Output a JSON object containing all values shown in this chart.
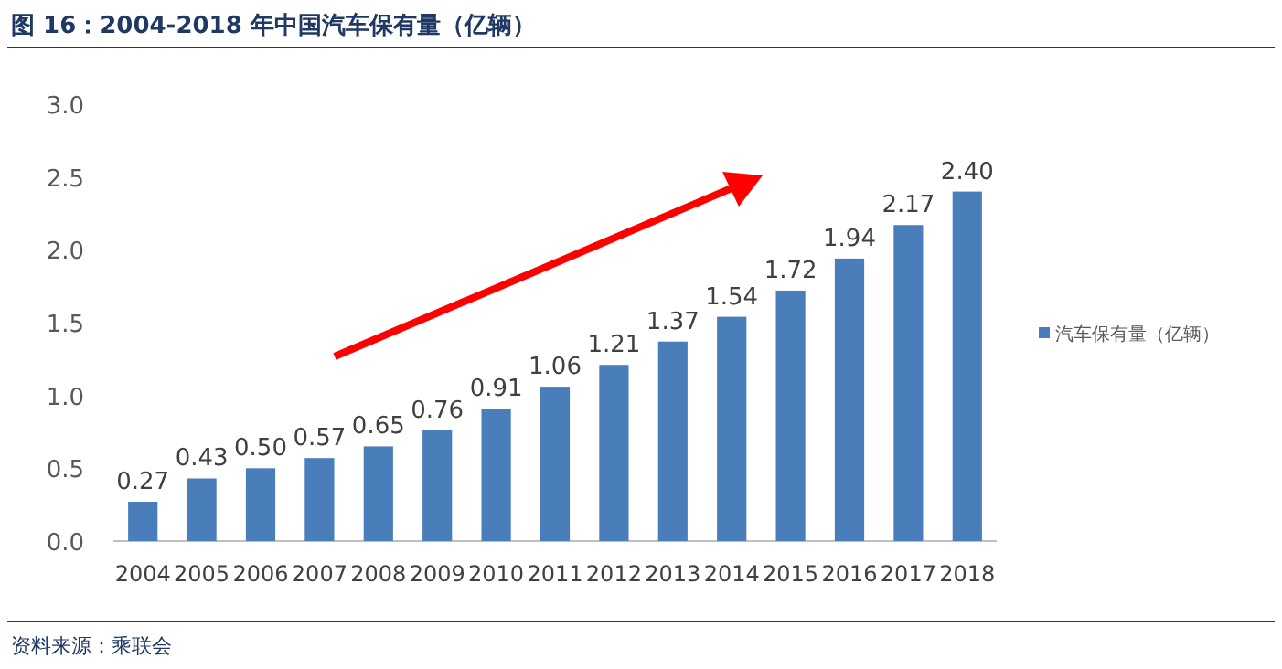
{
  "chart_data": {
    "type": "bar",
    "title": "图 16：2004-2018 年中国汽车保有量（亿辆）",
    "categories": [
      "2004",
      "2005",
      "2006",
      "2007",
      "2008",
      "2009",
      "2010",
      "2011",
      "2012",
      "2013",
      "2014",
      "2015",
      "2016",
      "2017",
      "2018"
    ],
    "series": [
      {
        "name": "汽车保有量（亿辆）",
        "color": "#4a7ebb",
        "values": [
          0.27,
          0.43,
          0.5,
          0.57,
          0.65,
          0.76,
          0.91,
          1.06,
          1.21,
          1.37,
          1.54,
          1.72,
          1.94,
          2.17,
          2.4
        ],
        "value_labels": [
          "0.27",
          "0.43",
          "0.50",
          "0.57",
          "0.65",
          "0.76",
          "0.91",
          "1.06",
          "1.21",
          "1.37",
          "1.54",
          "1.72",
          "1.94",
          "2.17",
          "2.40"
        ]
      }
    ],
    "ylim": [
      0,
      3
    ],
    "yticks": [
      {
        "value": 0,
        "label": "0.0"
      },
      {
        "value": 0.5,
        "label": "0.5"
      },
      {
        "value": 1,
        "label": "1.0"
      },
      {
        "value": 1.5,
        "label": "1.5"
      },
      {
        "value": 2,
        "label": "2.0"
      },
      {
        "value": 2.5,
        "label": "2.5"
      },
      {
        "value": 3,
        "label": "3.0"
      }
    ],
    "legend": "right",
    "annotations": [
      "资料来源：乘联会"
    ]
  }
}
